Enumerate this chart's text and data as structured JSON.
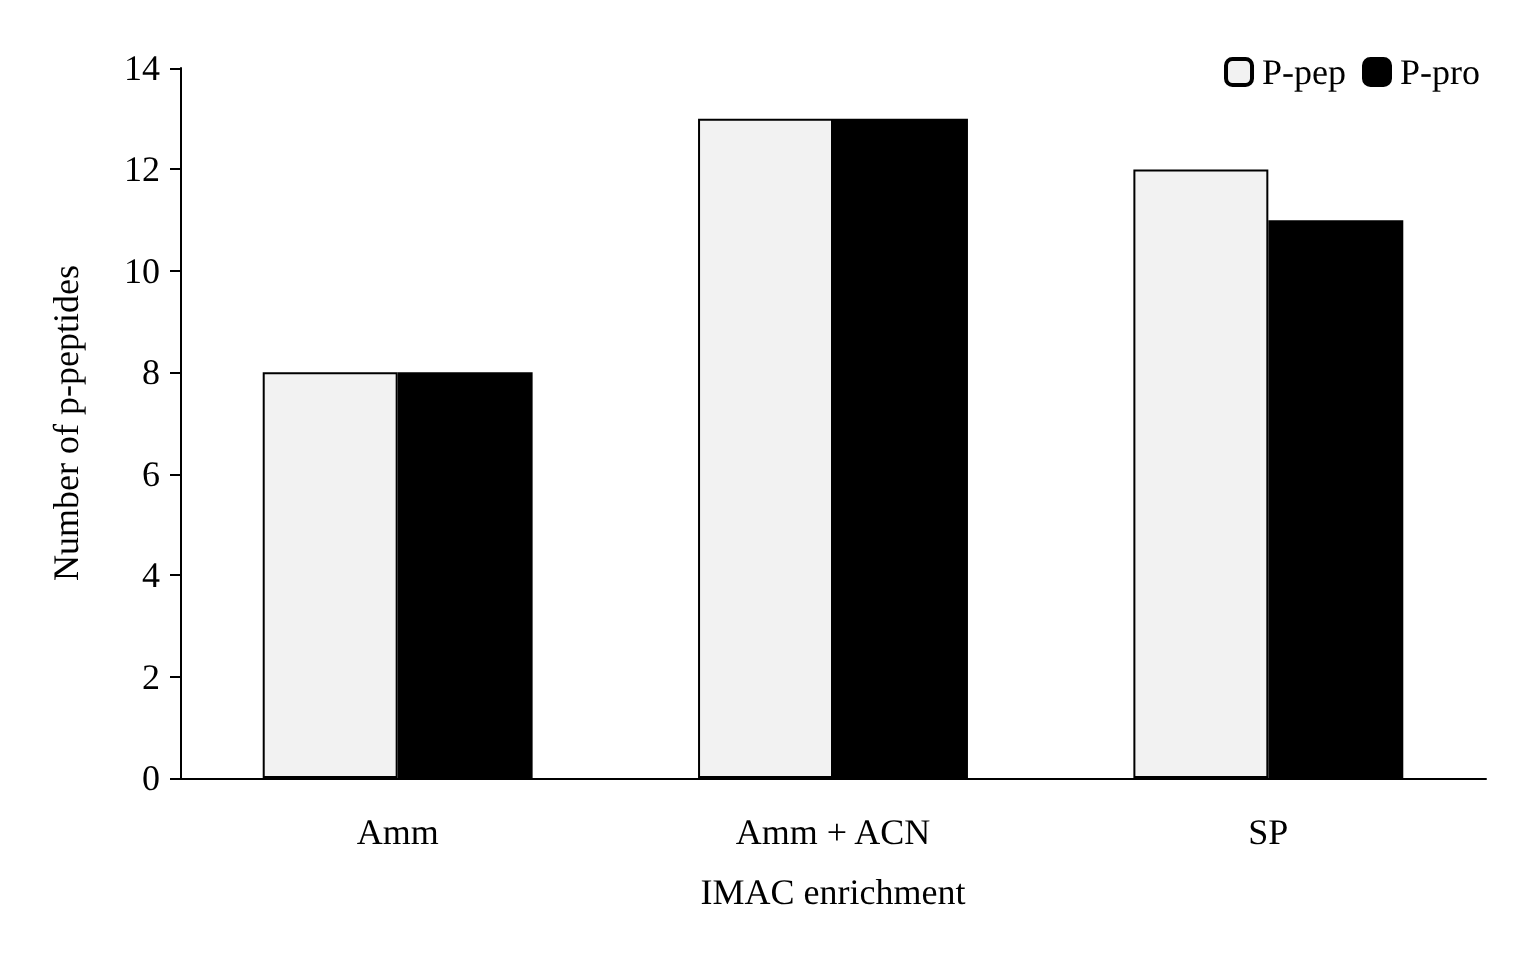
{
  "chart_data": {
    "type": "bar",
    "xlabel": "IMAC enrichment",
    "ylabel": "Number of p-peptides",
    "categories": [
      "Amm",
      "Amm + ACN",
      "SP"
    ],
    "series": [
      {
        "name": "P-pep",
        "color": "#f2f2f2",
        "values": [
          8,
          13,
          12
        ]
      },
      {
        "name": "P-pro",
        "color": "#000000",
        "values": [
          8,
          13,
          11
        ]
      }
    ],
    "ylim": [
      0,
      14
    ],
    "yticks": [
      0,
      2,
      4,
      6,
      8,
      10,
      12,
      14
    ],
    "grid": false,
    "legend": "top right"
  }
}
